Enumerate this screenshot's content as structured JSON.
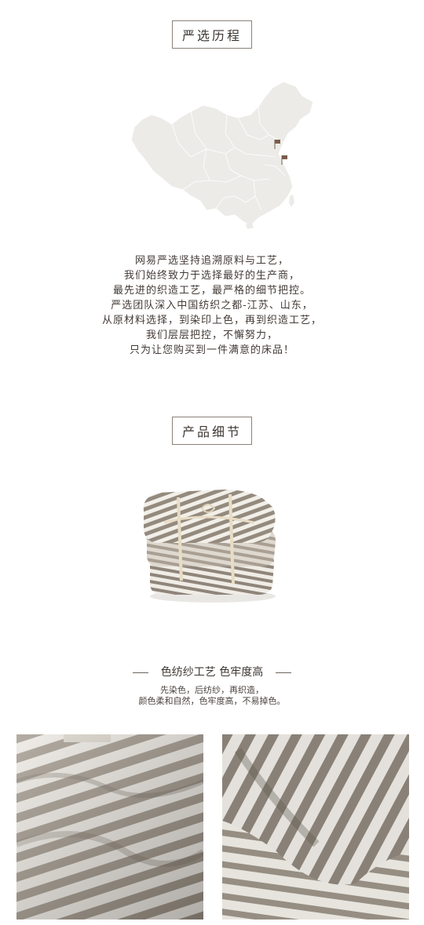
{
  "section1": {
    "title": "严选历程",
    "paragraph": [
      "网易严选坚持追溯原料与工艺，",
      "我们始终致力于选择最好的生产商，",
      "最先进的织造工艺，最严格的细节把控。",
      "严选团队深入中国纺织之都-江苏、山东，",
      "从原材料选择，到染印上色，再到织造工艺，",
      "我们层层把控，不懈努力，",
      "只为让您购买到一件满意的床品！"
    ]
  },
  "section2": {
    "title": "产品细节",
    "craft_title": "色纺纱工艺 色牢度高",
    "craft_desc": [
      "先染色，后纺纱，再织造，",
      "颜色柔和自然，色牢度高，不易掉色。"
    ]
  },
  "colors": {
    "map_fill": "#ecebe8",
    "map_border": "#ffffff",
    "flag": "#7a5d4c",
    "stripe_dark": "#948a7e",
    "stripe_light": "#f2efe9"
  }
}
